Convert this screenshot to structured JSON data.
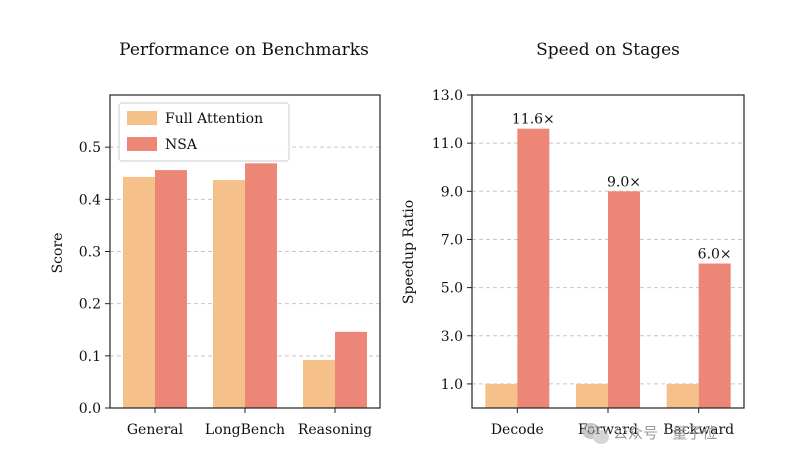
{
  "chart_data": [
    {
      "type": "bar",
      "title": "Performance on Benchmarks",
      "xlabel": "",
      "ylabel": "Score",
      "categories": [
        "General",
        "LongBench",
        "Reasoning"
      ],
      "series": [
        {
          "name": "Full Attention",
          "color": "#f6c08a",
          "values": [
            0.443,
            0.437,
            0.092
          ]
        },
        {
          "name": "NSA",
          "color": "#ec8777",
          "values": [
            0.456,
            0.469,
            0.146
          ]
        }
      ],
      "ylim": [
        0.0,
        0.6
      ],
      "yticks": [
        "0.0",
        "0.1",
        "0.2",
        "0.3",
        "0.4",
        "0.5"
      ],
      "legend": "top-left",
      "grid": true
    },
    {
      "type": "bar",
      "title": "Speed on Stages",
      "xlabel": "",
      "ylabel": "Speedup Ratio",
      "categories": [
        "Decode",
        "Forward",
        "Backward"
      ],
      "series": [
        {
          "name": "Full Attention",
          "color": "#f6c08a",
          "values": [
            1.0,
            1.0,
            1.0
          ]
        },
        {
          "name": "NSA",
          "color": "#ec8777",
          "values": [
            11.6,
            9.0,
            6.0
          ]
        }
      ],
      "data_labels": [
        "11.6×",
        "9.0×",
        "6.0×"
      ],
      "ylim": [
        0.0,
        13.0
      ],
      "yticks": [
        "1.0",
        "3.0",
        "5.0",
        "7.0",
        "9.0",
        "11.0",
        "13.0"
      ],
      "grid": true
    }
  ],
  "watermark": {
    "text": "公众号 · 量子位",
    "icon": "wechat-icon"
  }
}
